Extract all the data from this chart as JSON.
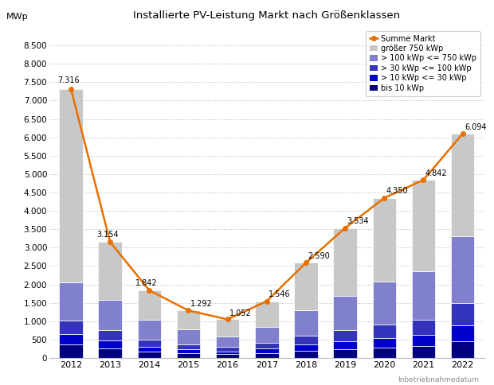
{
  "title": "Installierte PV-Leistung Markt nach Größenklassen",
  "ylabel": "MWp",
  "years": [
    2012,
    2013,
    2014,
    2015,
    2016,
    2017,
    2018,
    2019,
    2020,
    2021,
    2022
  ],
  "line_values": [
    7316,
    3154,
    1842,
    1292,
    1052,
    1546,
    2590,
    3534,
    4350,
    4842,
    6094
  ],
  "line_labels": [
    "7.316",
    "3.154",
    "1.842",
    "1.292",
    "1.052",
    "1.546",
    "2.590",
    "3.534",
    "4.350",
    "4.842",
    "6.094"
  ],
  "segments": {
    "bis10": [
      380,
      270,
      175,
      130,
      100,
      140,
      200,
      250,
      290,
      320,
      450
    ],
    "10to30": [
      280,
      210,
      140,
      105,
      85,
      120,
      170,
      210,
      260,
      300,
      430
    ],
    "30to100": [
      360,
      280,
      185,
      140,
      110,
      155,
      230,
      300,
      370,
      430,
      620
    ],
    "100to750": [
      1030,
      820,
      530,
      400,
      290,
      430,
      700,
      920,
      1150,
      1310,
      1820
    ],
    "gt750": [
      5266,
      1574,
      812,
      517,
      467,
      701,
      1290,
      1854,
      2280,
      2482,
      2774
    ]
  },
  "colors": {
    "bis10": "#000080",
    "10to30": "#0000CC",
    "30to100": "#3333BB",
    "100to750": "#8080CC",
    "gt750": "#C8C8C8"
  },
  "line_color": "#E87000",
  "legend_labels": [
    "Summe Markt",
    "größer 750 kWp",
    "> 100 kWp <= 750 kWp",
    "> 30 kWp <= 100 kWp",
    "> 10 kWp <= 30 kWp",
    "bis 10 kWp"
  ],
  "ylim": [
    0,
    9000
  ],
  "yticks": [
    0,
    500,
    1000,
    1500,
    2000,
    2500,
    3000,
    3500,
    4000,
    4500,
    5000,
    5500,
    6000,
    6500,
    7000,
    7500,
    8000,
    8500
  ],
  "ytick_labels": [
    "0",
    "500",
    "1.000",
    "1.500",
    "2.000",
    "2.500",
    "3.000",
    "3.500",
    "4.000",
    "4.500",
    "5.000",
    "5.500",
    "6.000",
    "6.500",
    "7.000",
    "7.500",
    "8.000",
    "8.500"
  ],
  "footer_text": "Inbetriebnahmedatum",
  "background_color": "#FFFFFF",
  "plot_bg_color": "#FFFFFF"
}
